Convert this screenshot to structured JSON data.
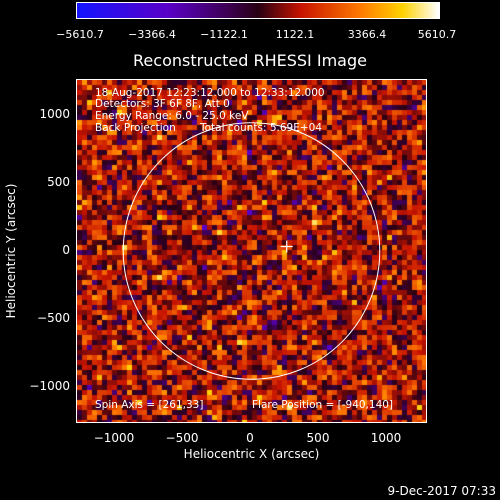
{
  "colorbar": {
    "tick_labels": [
      "−5610.7",
      "−3366.4",
      "−1122.1",
      "1122.1",
      "3366.4",
      "5610.7"
    ],
    "range": [
      -5610.7,
      5610.7
    ]
  },
  "plot": {
    "title": "Reconstructed RHESSI Image",
    "xlabel": "Heliocentric X (arcsec)",
    "ylabel": "Heliocentric Y (arcsec)",
    "xlim": [
      -1300,
      1300
    ],
    "ylim": [
      -1270,
      1270
    ],
    "x_ticks": [
      "−1000",
      "−500",
      "0",
      "500",
      "1000"
    ],
    "x_tick_values": [
      -1000,
      -500,
      0,
      500,
      1000
    ],
    "y_ticks": [
      "1000",
      "500",
      "0",
      "−500",
      "−1000"
    ],
    "y_tick_values": [
      1000,
      500,
      0,
      -500,
      -1000
    ],
    "solar_limb_radius_arcsec": 950,
    "map_center_marker_arcsec": [
      261,
      33
    ]
  },
  "annotations": {
    "time_range": "18-Aug-2017 12:23:12.000 to 12:33:12.000",
    "detectors": "Detectors: 3F 6F 8F, Att 0",
    "energy_range": "Energy Range: 6.0 - 25.0 keV",
    "method": "Back Projection",
    "total_counts": "Total counts: 5.69E+04",
    "spin_axis": "Spin Axis = [261,33]",
    "flare_position": "Flare Position = [-940,140]"
  },
  "footer": {
    "timestamp": "9-Dec-2017 07:33"
  }
}
